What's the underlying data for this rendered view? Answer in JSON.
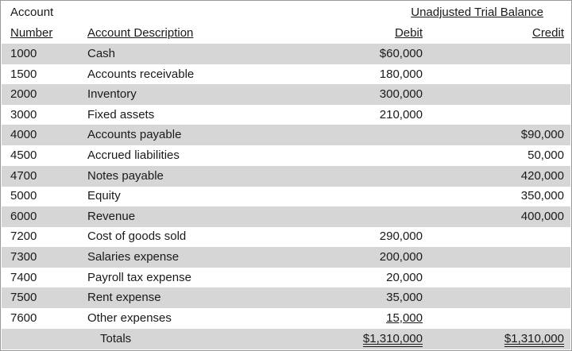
{
  "header": {
    "account_label": "Account",
    "number_label": "Number",
    "description_label": "Account Description",
    "section_title": "Unadjusted Trial Balance",
    "debit_label": "Debit",
    "credit_label": "Credit"
  },
  "rows": [
    {
      "number": "1000",
      "description": "Cash",
      "debit": "$60,000",
      "credit": ""
    },
    {
      "number": "1500",
      "description": "Accounts receivable",
      "debit": "180,000",
      "credit": ""
    },
    {
      "number": "2000",
      "description": "Inventory",
      "debit": "300,000",
      "credit": ""
    },
    {
      "number": "3000",
      "description": "Fixed assets",
      "debit": "210,000",
      "credit": ""
    },
    {
      "number": "4000",
      "description": "Accounts payable",
      "debit": "",
      "credit": "$90,000"
    },
    {
      "number": "4500",
      "description": "Accrued liabilities",
      "debit": "",
      "credit": "50,000"
    },
    {
      "number": "4700",
      "description": "Notes payable",
      "debit": "",
      "credit": "420,000"
    },
    {
      "number": "5000",
      "description": "Equity",
      "debit": "",
      "credit": "350,000"
    },
    {
      "number": "6000",
      "description": "Revenue",
      "debit": "",
      "credit": "400,000"
    },
    {
      "number": "7200",
      "description": "Cost of goods sold",
      "debit": "290,000",
      "credit": ""
    },
    {
      "number": "7300",
      "description": "Salaries expense",
      "debit": "200,000",
      "credit": ""
    },
    {
      "number": "7400",
      "description": "Payroll tax expense",
      "debit": "20,000",
      "credit": ""
    },
    {
      "number": "7500",
      "description": "Rent expense",
      "debit": "35,000",
      "credit": ""
    },
    {
      "number": "7600",
      "description": "Other expenses",
      "debit": "15,000",
      "credit": ""
    }
  ],
  "totals": {
    "label": "Totals",
    "debit": "$1,310,000",
    "credit": "$1,310,000"
  },
  "colors": {
    "shade": "#d6d6d6",
    "border": "#9a9a9a"
  }
}
